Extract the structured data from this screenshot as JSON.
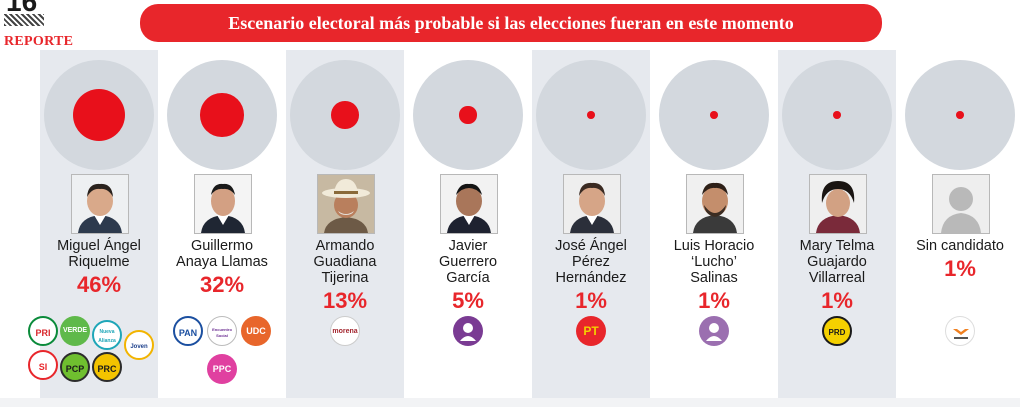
{
  "header": {
    "page_number": "16",
    "section": "REPORTE",
    "title": "Escenario electoral más probable si las elecciones fueran en este momento"
  },
  "colors": {
    "accent": "#e8262b",
    "bubble": "#d3d8de",
    "column_shade": "#e6e9ee"
  },
  "candidates": [
    {
      "name_line1": "Miguel Ángel",
      "name_line2": "Riquelme",
      "name_line3": "",
      "percent": "46%",
      "value": 46,
      "logos": [
        "PRI",
        "VERDE",
        "Nueva Alianza",
        "Joven",
        "SI",
        "PCP",
        "PRC"
      ]
    },
    {
      "name_line1": "Guillermo",
      "name_line2": "Anaya Llamas",
      "name_line3": "",
      "percent": "32%",
      "value": 32,
      "logos": [
        "PAN",
        "Encuentro Social",
        "UDC",
        "PPC"
      ]
    },
    {
      "name_line1": "Armando",
      "name_line2": "Guadiana",
      "name_line3": "Tijerina",
      "percent": "13%",
      "value": 13,
      "logos": [
        "morena"
      ]
    },
    {
      "name_line1": "Javier",
      "name_line2": "Guerrero",
      "name_line3": "García",
      "percent": "5%",
      "value": 5,
      "logos": [
        "independent-person-icon"
      ]
    },
    {
      "name_line1": "José Ángel",
      "name_line2": "Pérez",
      "name_line3": "Hernández",
      "percent": "1%",
      "value": 1,
      "logos": [
        "PT"
      ]
    },
    {
      "name_line1": "Luis Horacio",
      "name_line2": "‘Lucho’",
      "name_line3": "Salinas",
      "percent": "1%",
      "value": 1,
      "logos": [
        "independent-person-icon"
      ]
    },
    {
      "name_line1": "Mary Telma",
      "name_line2": "Guajardo",
      "name_line3": "Villarreal",
      "percent": "1%",
      "value": 1,
      "logos": [
        "PRD"
      ]
    },
    {
      "name_line1": "Sin candidato",
      "name_line2": "",
      "name_line3": "",
      "percent": "1%",
      "value": 1,
      "logos": [
        "movimiento-ciudadano-icon"
      ]
    }
  ]
}
